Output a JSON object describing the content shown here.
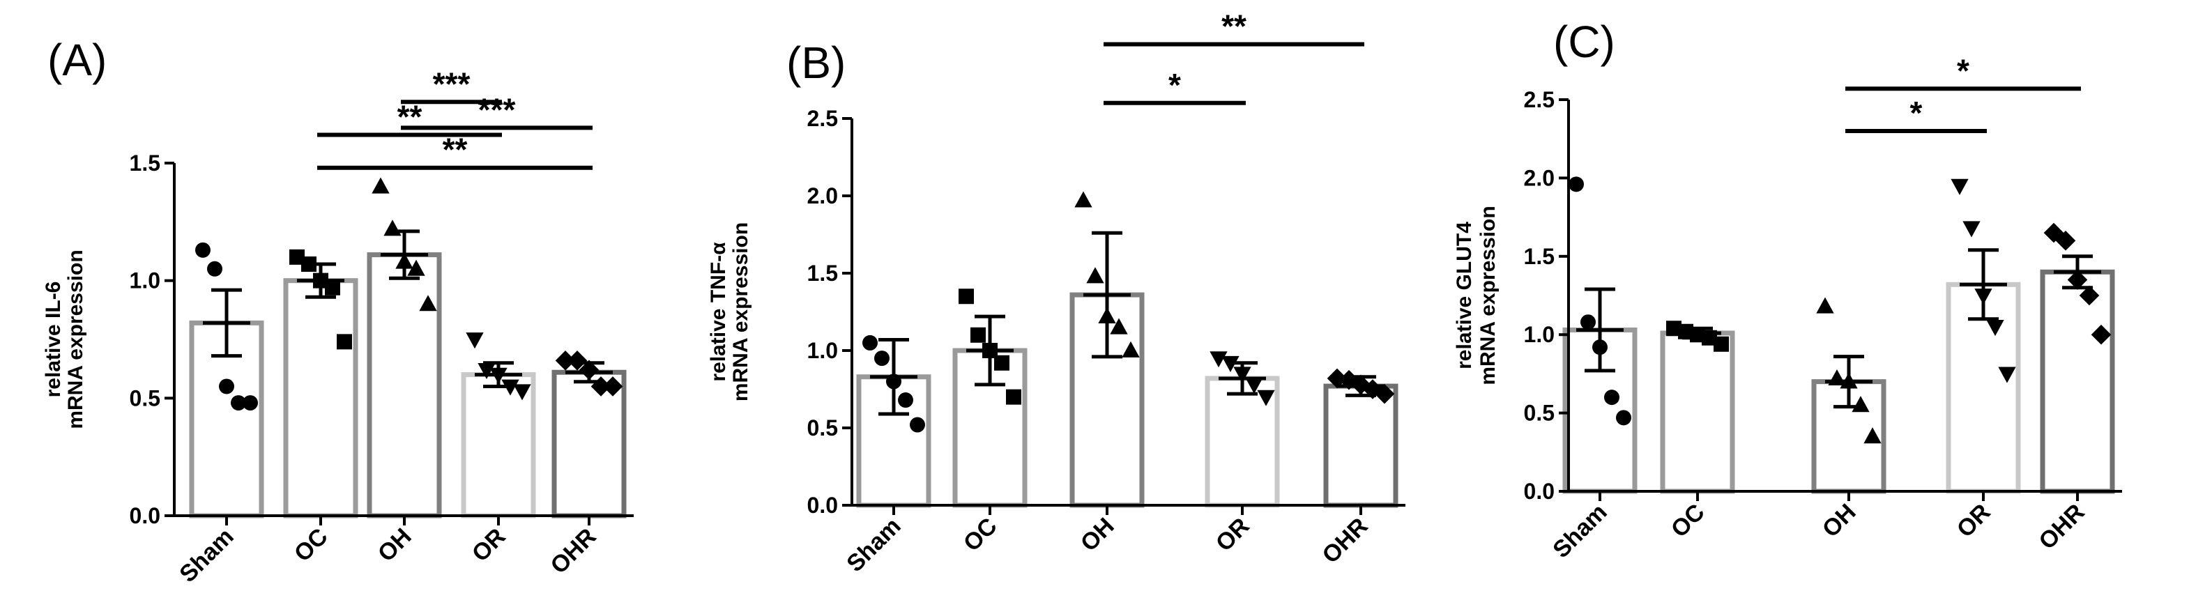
{
  "chart_data": [
    {
      "panel": "(A)",
      "type": "bar",
      "ylabel_line1": "relative IL-6",
      "ylabel_line2": "mRNA expression",
      "ylim": [
        0,
        1.5
      ],
      "yticks": [
        "0.0",
        "0.5",
        "1.0",
        "1.5"
      ],
      "categories": [
        "Sham",
        "OC",
        "OH",
        "OR",
        "OHR"
      ],
      "means": [
        0.82,
        1.0,
        1.11,
        0.6,
        0.61
      ],
      "err": [
        0.14,
        0.07,
        0.1,
        0.05,
        0.04
      ],
      "marker_shapes": [
        "circle",
        "square",
        "triangle-up",
        "triangle-down",
        "diamond"
      ],
      "bar_colors": [
        "#9a9a9a",
        "#9a9a9a",
        "#808080",
        "#c8c8c8",
        "#707070"
      ],
      "points": [
        [
          1.13,
          1.05,
          0.55,
          0.48,
          0.48
        ],
        [
          1.1,
          1.07,
          1.0,
          0.97,
          0.74
        ],
        [
          1.4,
          1.22,
          1.08,
          1.05,
          0.9
        ],
        [
          0.75,
          0.62,
          0.6,
          0.55,
          0.53
        ],
        [
          0.66,
          0.66,
          0.62,
          0.55,
          0.55
        ]
      ],
      "significance": [
        {
          "from": 2,
          "to": 3,
          "y": 1.76,
          "label": "***"
        },
        {
          "from": 2,
          "to": 4,
          "y": 1.65,
          "label": "***"
        },
        {
          "from": 1,
          "to": 3,
          "y": 1.62,
          "label": "**"
        },
        {
          "from": 1,
          "to": 4,
          "y": 1.48,
          "label": "**"
        }
      ]
    },
    {
      "panel": "(B)",
      "type": "bar",
      "ylabel_line1": "relative TNF-α",
      "ylabel_line2": "mRNA expression",
      "ylim": [
        0,
        2.5
      ],
      "yticks": [
        "0.0",
        "0.5",
        "1.0",
        "1.5",
        "2.0",
        "2.5"
      ],
      "categories": [
        "Sham",
        "OC",
        "OH",
        "OR",
        "OHR"
      ],
      "means": [
        0.83,
        1.0,
        1.36,
        0.82,
        0.77
      ],
      "err": [
        0.24,
        0.22,
        0.4,
        0.1,
        0.06
      ],
      "marker_shapes": [
        "circle",
        "square",
        "triangle-up",
        "triangle-down",
        "diamond"
      ],
      "bar_colors": [
        "#9a9a9a",
        "#9a9a9a",
        "#808080",
        "#c8c8c8",
        "#707070"
      ],
      "points": [
        [
          1.05,
          0.95,
          0.8,
          0.68,
          0.52
        ],
        [
          1.35,
          1.1,
          1.0,
          0.92,
          0.7
        ],
        [
          1.97,
          1.48,
          1.22,
          1.15,
          1.0
        ],
        [
          0.95,
          0.92,
          0.85,
          0.78,
          0.7
        ],
        [
          0.82,
          0.81,
          0.78,
          0.75,
          0.72
        ]
      ],
      "significance": [
        {
          "from": 2,
          "to": 4,
          "y": 2.98,
          "label": "**"
        },
        {
          "from": 2,
          "to": 3,
          "y": 2.6,
          "label": "*"
        }
      ]
    },
    {
      "panel": "(C)",
      "type": "bar",
      "ylabel_line1": "relative GLUT4",
      "ylabel_line2": "mRNA expression",
      "ylim": [
        0,
        2.5
      ],
      "yticks": [
        "0.0",
        "0.5",
        "1.0",
        "1.5",
        "2.0",
        "2.5"
      ],
      "categories": [
        "Sham",
        "OC",
        "OH",
        "OR",
        "OHR"
      ],
      "means": [
        1.03,
        1.01,
        0.7,
        1.32,
        1.4
      ],
      "err": [
        0.26,
        0.03,
        0.16,
        0.22,
        0.1
      ],
      "marker_shapes": [
        "circle",
        "square",
        "triangle-up",
        "triangle-down",
        "diamond"
      ],
      "bar_colors": [
        "#9a9a9a",
        "#9a9a9a",
        "#808080",
        "#c8c8c8",
        "#707070"
      ],
      "points": [
        [
          1.96,
          1.08,
          0.92,
          0.6,
          0.47
        ],
        [
          1.04,
          1.02,
          1.0,
          0.98,
          0.94
        ],
        [
          1.18,
          0.72,
          0.7,
          0.55,
          0.35
        ],
        [
          1.95,
          1.68,
          1.25,
          1.05,
          0.75
        ],
        [
          1.65,
          1.6,
          1.35,
          1.25,
          1.0
        ]
      ],
      "significance": [
        {
          "from": 2,
          "to": 4,
          "y": 2.57,
          "label": "*"
        },
        {
          "from": 2,
          "to": 3,
          "y": 2.3,
          "label": "*"
        }
      ]
    }
  ]
}
